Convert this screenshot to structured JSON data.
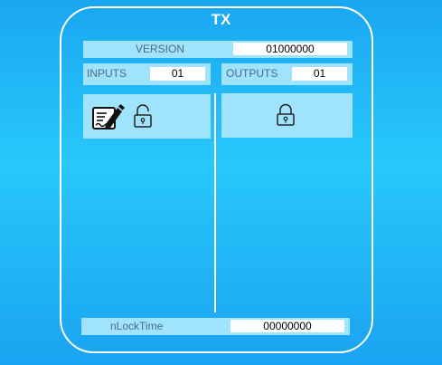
{
  "tx": {
    "title": "TX",
    "version_label": "VERSION",
    "version_value": "01000000",
    "inputs_label": "INPUTS",
    "inputs_value": "01",
    "outputs_label": "OUTPUTS",
    "outputs_value": "01",
    "locktime_label": "nLockTime",
    "locktime_value": "00000000"
  },
  "icons": {
    "input_signature": "signature-pen-icon",
    "input_lock": "unlocked-padlock-icon",
    "output_lock": "locked-padlock-icon"
  },
  "colors": {
    "background": "#1eb5f6",
    "field_fill": "#a0e3fd",
    "frame_stroke": "#ffffff",
    "label_text": "#4d6c80"
  }
}
